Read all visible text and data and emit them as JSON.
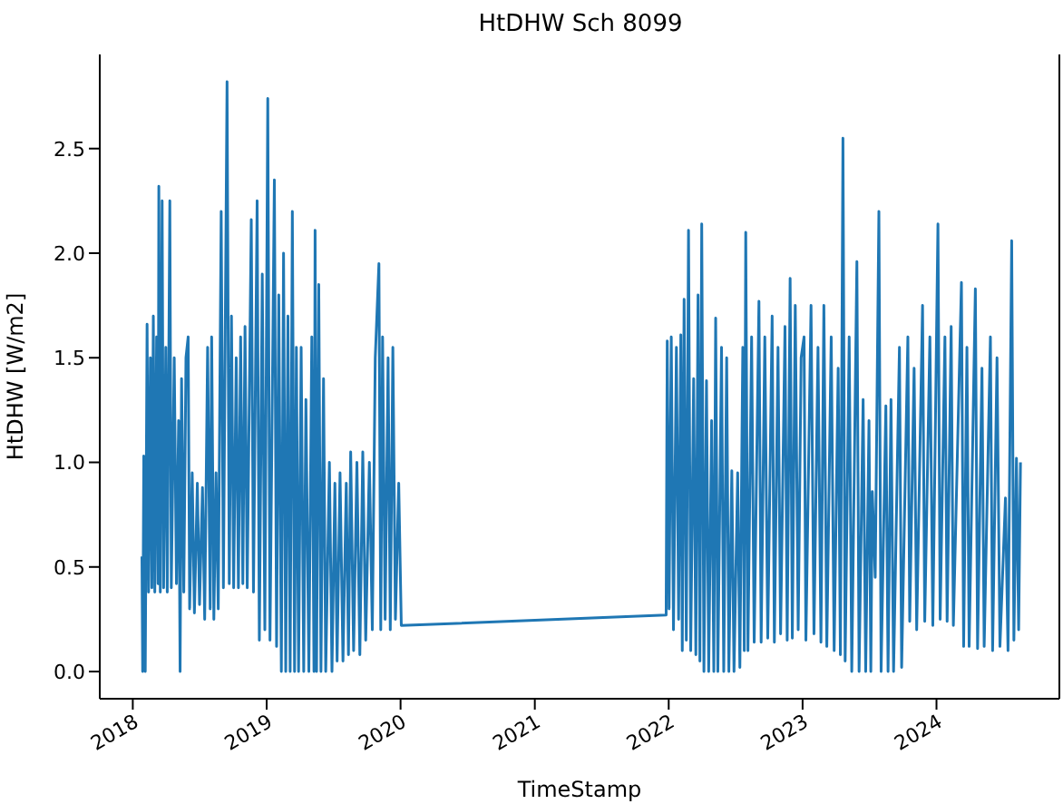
{
  "chart_data": {
    "type": "line",
    "title": "HtDHW Sch 8099",
    "xlabel": "TimeStamp",
    "ylabel": "HtDHW [W/m2]",
    "xlim": [
      "2017-10-03",
      "2024-12-01"
    ],
    "xticks": [
      "2018",
      "2019",
      "2020",
      "2021",
      "2022",
      "2023",
      "2024"
    ],
    "ylim": [
      -0.13,
      2.95
    ],
    "yticks": [
      {
        "value": 0,
        "label": "0.0"
      },
      0.5,
      {
        "value": 1,
        "label": "1.0"
      },
      1.5,
      {
        "value": 2,
        "label": "2.0"
      },
      2.5
    ],
    "series": [
      {
        "color": "#1f77b4",
        "x": [
          "2018-01-26",
          "2018-01-28",
          "2018-01-31",
          "2018-02-04",
          "2018-02-09",
          "2018-02-13",
          "2018-02-18",
          "2018-02-22",
          "2018-02-26",
          "2018-03-02",
          "2018-03-07",
          "2018-03-11",
          "2018-03-13",
          "2018-03-17",
          "2018-03-22",
          "2018-03-26",
          "2018-04-01",
          "2018-04-05",
          "2018-04-12",
          "2018-04-16",
          "2018-04-24",
          "2018-04-30",
          "2018-05-06",
          "2018-05-10",
          "2018-05-14",
          "2018-05-20",
          "2018-05-26",
          "2018-06-01",
          "2018-06-05",
          "2018-06-12",
          "2018-06-18",
          "2018-06-26",
          "2018-07-02",
          "2018-07-10",
          "2018-07-16",
          "2018-07-24",
          "2018-07-31",
          "2018-08-04",
          "2018-08-10",
          "2018-08-16",
          "2018-08-22",
          "2018-08-30",
          "2018-09-05",
          "2018-09-15",
          "2018-09-21",
          "2018-09-27",
          "2018-10-03",
          "2018-10-10",
          "2018-10-16",
          "2018-10-22",
          "2018-10-28",
          "2018-11-03",
          "2018-11-09",
          "2018-11-20",
          "2018-11-26",
          "2018-12-06",
          "2018-12-12",
          "2018-12-20",
          "2018-12-27",
          "2019-01-04",
          "2019-01-10",
          "2019-01-22",
          "2019-01-28",
          "2019-02-03",
          "2019-02-10",
          "2019-02-16",
          "2019-02-22",
          "2019-02-28",
          "2019-03-06",
          "2019-03-12",
          "2019-03-18",
          "2019-03-23",
          "2019-03-29",
          "2019-04-05",
          "2019-04-12",
          "2019-04-18",
          "2019-04-26",
          "2019-05-04",
          "2019-05-10",
          "2019-05-13",
          "2019-05-17",
          "2019-05-23",
          "2019-05-29",
          "2019-06-05",
          "2019-06-11",
          "2019-06-21",
          "2019-06-28",
          "2019-07-06",
          "2019-07-12",
          "2019-07-20",
          "2019-07-28",
          "2019-08-06",
          "2019-08-12",
          "2019-08-18",
          "2019-08-26",
          "2019-09-04",
          "2019-09-12",
          "2019-09-20",
          "2019-09-28",
          "2019-10-08",
          "2019-10-16",
          "2019-10-24",
          "2019-11-03",
          "2019-11-08",
          "2019-11-13",
          "2019-11-20",
          "2019-11-28",
          "2019-12-04",
          "2019-12-11",
          "2019-12-18",
          "2019-12-27",
          "2020-01-03",
          "2021-12-25",
          "2021-12-28",
          "2022-01-02",
          "2022-01-08",
          "2022-01-14",
          "2022-01-22",
          "2022-01-28",
          "2022-02-03",
          "2022-02-07",
          "2022-02-12",
          "2022-02-18",
          "2022-02-24",
          "2022-03-02",
          "2022-03-10",
          "2022-03-16",
          "2022-03-22",
          "2022-03-27",
          "2022-04-01",
          "2022-04-07",
          "2022-04-14",
          "2022-04-20",
          "2022-04-28",
          "2022-05-04",
          "2022-05-09",
          "2022-05-15",
          "2022-05-25",
          "2022-05-31",
          "2022-06-08",
          "2022-06-14",
          "2022-06-22",
          "2022-06-28",
          "2022-07-08",
          "2022-07-14",
          "2022-07-22",
          "2022-07-26",
          "2022-07-30",
          "2022-08-05",
          "2022-08-15",
          "2022-08-22",
          "2022-09-04",
          "2022-09-10",
          "2022-09-20",
          "2022-09-28",
          "2022-10-10",
          "2022-10-16",
          "2022-10-26",
          "2022-11-02",
          "2022-11-14",
          "2022-11-20",
          "2022-11-28",
          "2022-12-04",
          "2022-12-12",
          "2022-12-20",
          "2022-12-28",
          "2023-01-05",
          "2023-01-10",
          "2023-01-24",
          "2023-02-01",
          "2023-02-12",
          "2023-02-20",
          "2023-02-28",
          "2023-03-08",
          "2023-03-20",
          "2023-03-28",
          "2023-04-08",
          "2023-04-14",
          "2023-04-21",
          "2023-04-27",
          "2023-05-08",
          "2023-05-15",
          "2023-05-29",
          "2023-06-04",
          "2023-06-15",
          "2023-06-22",
          "2023-07-01",
          "2023-07-06",
          "2023-07-10",
          "2023-07-18",
          "2023-07-28",
          "2023-08-03",
          "2023-08-16",
          "2023-08-22",
          "2023-08-30",
          "2023-09-06",
          "2023-09-22",
          "2023-09-28",
          "2023-10-15",
          "2023-10-20",
          "2023-11-01",
          "2023-11-08",
          "2023-11-24",
          "2023-11-30",
          "2023-12-14",
          "2023-12-22",
          "2024-01-05",
          "2024-01-11",
          "2024-01-24",
          "2024-01-30",
          "2024-02-10",
          "2024-02-16",
          "2024-03-09",
          "2024-03-15",
          "2024-03-24",
          "2024-03-30",
          "2024-04-16",
          "2024-04-22",
          "2024-05-04",
          "2024-05-10",
          "2024-05-27",
          "2024-06-02",
          "2024-06-14",
          "2024-06-22",
          "2024-07-07",
          "2024-07-14",
          "2024-07-24",
          "2024-07-30",
          "2024-08-06",
          "2024-08-12",
          "2024-08-17"
        ],
        "values": [
          0.55,
          0.0,
          1.03,
          0.0,
          1.66,
          0.38,
          1.5,
          0.4,
          1.7,
          0.38,
          1.6,
          0.42,
          2.32,
          0.38,
          2.25,
          0.4,
          1.55,
          0.38,
          2.25,
          0.4,
          1.5,
          0.42,
          1.2,
          0.0,
          1.4,
          0.38,
          1.5,
          1.6,
          0.3,
          0.95,
          0.28,
          0.9,
          0.32,
          0.88,
          0.25,
          1.55,
          0.3,
          1.6,
          0.25,
          0.95,
          0.3,
          2.2,
          0.4,
          2.82,
          0.42,
          1.7,
          0.4,
          1.5,
          0.4,
          1.6,
          0.42,
          1.65,
          0.4,
          2.16,
          0.38,
          2.25,
          0.15,
          1.9,
          0.2,
          2.74,
          0.15,
          2.35,
          0.12,
          1.8,
          0.0,
          2.0,
          0.0,
          1.7,
          0.0,
          2.2,
          0.0,
          1.55,
          0.0,
          1.55,
          0.0,
          1.3,
          0.0,
          1.6,
          0.0,
          2.11,
          0.0,
          1.85,
          0.0,
          1.4,
          0.0,
          1.0,
          0.0,
          0.9,
          0.05,
          0.95,
          0.05,
          0.9,
          0.08,
          1.05,
          0.1,
          1.0,
          0.08,
          1.05,
          0.15,
          1.0,
          0.2,
          1.5,
          1.95,
          0.2,
          1.6,
          0.25,
          1.5,
          0.2,
          1.55,
          0.25,
          0.9,
          0.22,
          0.27,
          1.58,
          0.3,
          1.6,
          0.2,
          1.55,
          0.25,
          1.61,
          0.1,
          1.78,
          0.15,
          2.11,
          0.1,
          1.4,
          0.08,
          1.8,
          0.05,
          2.14,
          0.0,
          1.39,
          0.0,
          1.2,
          0.0,
          1.69,
          0.0,
          1.55,
          0.0,
          1.5,
          0.0,
          0.96,
          0.0,
          0.95,
          0.02,
          1.55,
          0.1,
          2.1,
          0.1,
          1.6,
          0.14,
          1.77,
          0.14,
          1.6,
          0.16,
          1.7,
          0.14,
          1.55,
          0.18,
          1.65,
          0.15,
          1.88,
          0.16,
          1.75,
          0.2,
          1.5,
          1.6,
          0.15,
          1.75,
          0.18,
          1.55,
          0.14,
          1.75,
          0.12,
          1.6,
          0.1,
          1.45,
          0.08,
          2.55,
          0.05,
          1.6,
          0.0,
          1.96,
          0.0,
          1.3,
          0.0,
          1.2,
          0.0,
          0.86,
          0.45,
          2.2,
          0.0,
          1.27,
          0.0,
          1.3,
          0.0,
          1.55,
          0.02,
          1.6,
          0.24,
          1.45,
          0.2,
          1.75,
          0.24,
          1.6,
          0.22,
          2.14,
          0.25,
          1.6,
          0.24,
          1.65,
          0.22,
          1.86,
          0.12,
          1.55,
          0.12,
          1.83,
          0.11,
          1.45,
          0.12,
          1.6,
          0.1,
          1.5,
          0.12,
          0.83,
          0.1,
          2.06,
          0.15,
          1.02,
          0.2,
          1.0
        ]
      }
    ]
  }
}
